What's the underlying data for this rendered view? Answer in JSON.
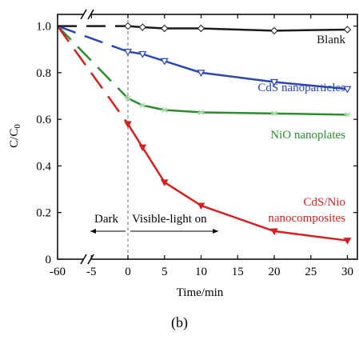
{
  "chart_data": {
    "type": "line",
    "xlabel": "Time/min",
    "ylabel": "C/C0",
    "ylim": [
      0,
      1.05
    ],
    "x_ticks": [
      "-60",
      "-5",
      "0",
      "5",
      "10",
      "15",
      "20",
      "25",
      "30"
    ],
    "y_ticks": [
      "0",
      "0.2",
      "0.4",
      "0.6",
      "0.8",
      "1.0"
    ],
    "axis_break": "between -60 and -5",
    "series": [
      {
        "name": "Blank",
        "color": "#1a1a1a",
        "marker": "diamond-open",
        "x": [
          -60,
          0,
          2,
          5,
          10,
          20,
          30
        ],
        "y": [
          1.0,
          1.0,
          0.995,
          0.99,
          0.99,
          0.98,
          0.985
        ]
      },
      {
        "name": "CdS nanoparticles",
        "color": "#2b47b5",
        "marker": "triangle-down-open",
        "x": [
          -60,
          0,
          2,
          5,
          10,
          20,
          30
        ],
        "y": [
          1.0,
          0.89,
          0.88,
          0.85,
          0.8,
          0.76,
          0.73
        ]
      },
      {
        "name": "NiO nanoplates",
        "color": "#2e8b30",
        "marker": "asterisk",
        "x": [
          -60,
          0,
          2,
          5,
          10,
          20,
          30
        ],
        "y": [
          1.0,
          0.69,
          0.66,
          0.64,
          0.63,
          0.625,
          0.62
        ]
      },
      {
        "name": "CdS/Nio nanocomposites",
        "name_lines": [
          "CdS/Nio",
          "nanocomposites"
        ],
        "color": "#d42020",
        "marker": "triangle-down-filled",
        "x": [
          -60,
          0,
          2,
          5,
          10,
          20,
          30
        ],
        "y": [
          1.0,
          0.58,
          0.48,
          0.33,
          0.23,
          0.12,
          0.08
        ]
      }
    ],
    "annotations": {
      "dark": "Dark",
      "light": "Visible-light on"
    },
    "divider_x": 0
  },
  "caption": "(b)"
}
